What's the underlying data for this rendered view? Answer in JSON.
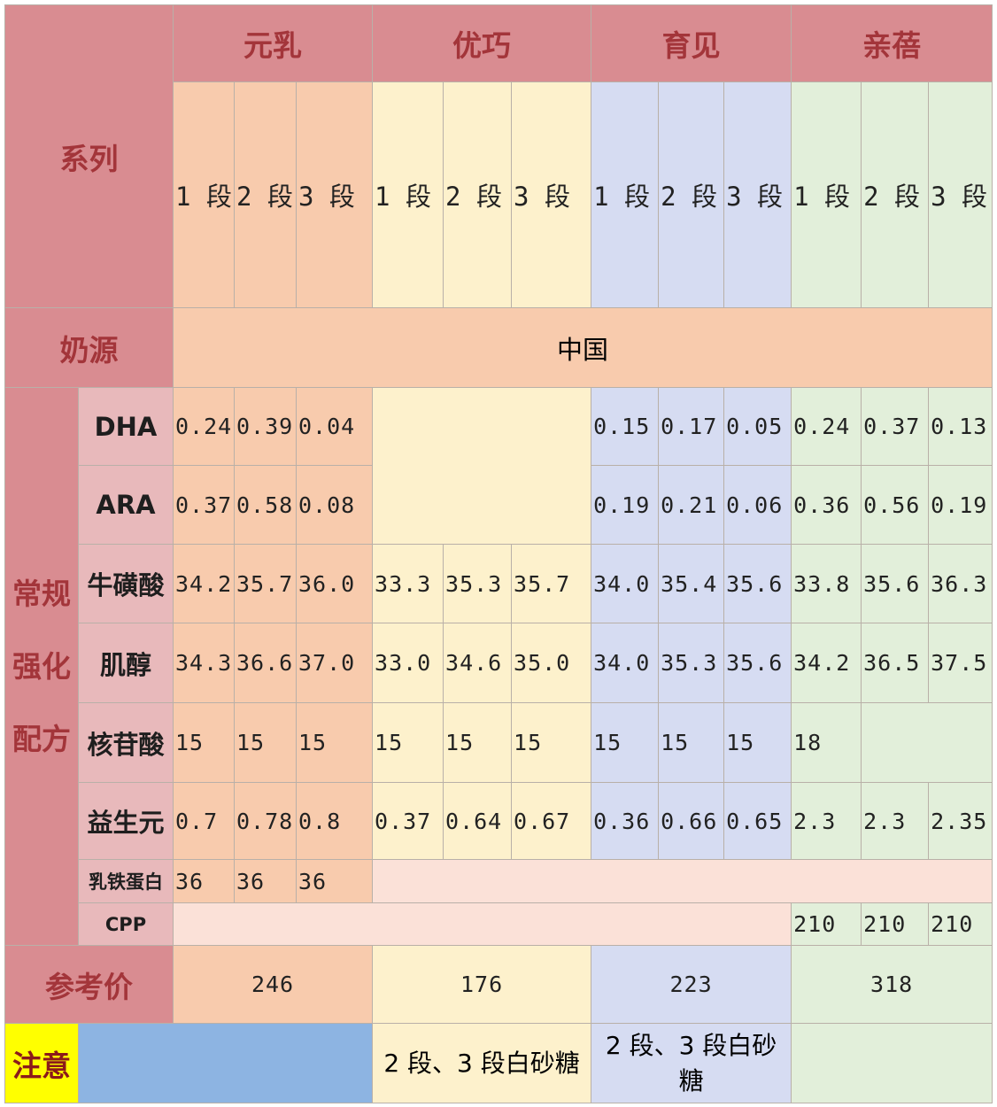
{
  "header": {
    "series_label": "系列",
    "brands": [
      "元乳",
      "优巧",
      "育见",
      "亲蓓"
    ]
  },
  "stages": [
    "1 段",
    "2 段",
    "3 段",
    "1 段",
    "2 段",
    "3 段",
    "1 段",
    "2 段",
    "3 段",
    "1 段",
    "2 段",
    "3 段"
  ],
  "milk_source": {
    "label": "奶源",
    "value": "中国"
  },
  "formula": {
    "label": "常规强化配方",
    "rows": [
      {
        "name": "DHA",
        "values": [
          "0.24",
          "0.39",
          "0.04",
          null,
          null,
          null,
          "0.15",
          "0.17",
          "0.05",
          "0.24",
          "0.37",
          "0.13"
        ]
      },
      {
        "name": "ARA",
        "values": [
          "0.37",
          "0.58",
          "0.08",
          null,
          null,
          null,
          "0.19",
          "0.21",
          "0.06",
          "0.36",
          "0.56",
          "0.19"
        ]
      },
      {
        "name": "牛磺酸",
        "values": [
          "34.2",
          "35.7",
          "36.0",
          "33.3",
          "35.3",
          "35.7",
          "34.0",
          "35.4",
          "35.6",
          "33.8",
          "35.6",
          "36.3"
        ]
      },
      {
        "name": "肌醇",
        "values": [
          "34.3",
          "36.6",
          "37.0",
          "33.0",
          "34.6",
          "35.0",
          "34.0",
          "35.3",
          "35.6",
          "34.2",
          "36.5",
          "37.5"
        ]
      },
      {
        "name": "核苷酸",
        "values": [
          "15",
          "15",
          "15",
          "15",
          "15",
          "15",
          "15",
          "15",
          "15",
          "18",
          null,
          null
        ]
      },
      {
        "name": "益生元",
        "values": [
          "0.7",
          "0.78",
          "0.8",
          "0.37",
          "0.64",
          "0.67",
          "0.36",
          "0.66",
          "0.65",
          "2.3",
          "2.3",
          "2.35"
        ]
      },
      {
        "name": "乳铁蛋白",
        "values": [
          "36",
          "36",
          "36",
          null,
          null,
          null,
          null,
          null,
          null,
          null,
          null,
          null
        ]
      },
      {
        "name": "CPP",
        "values": [
          null,
          null,
          null,
          null,
          null,
          null,
          null,
          null,
          null,
          "210",
          "210",
          "210"
        ]
      }
    ]
  },
  "price": {
    "label": "参考价",
    "values": [
      "246",
      "176",
      "223",
      "318"
    ]
  },
  "notes": {
    "label": "注意",
    "values": [
      null,
      "2 段、3 段白砂糖",
      "2 段、3 段白砂糖",
      null
    ]
  }
}
